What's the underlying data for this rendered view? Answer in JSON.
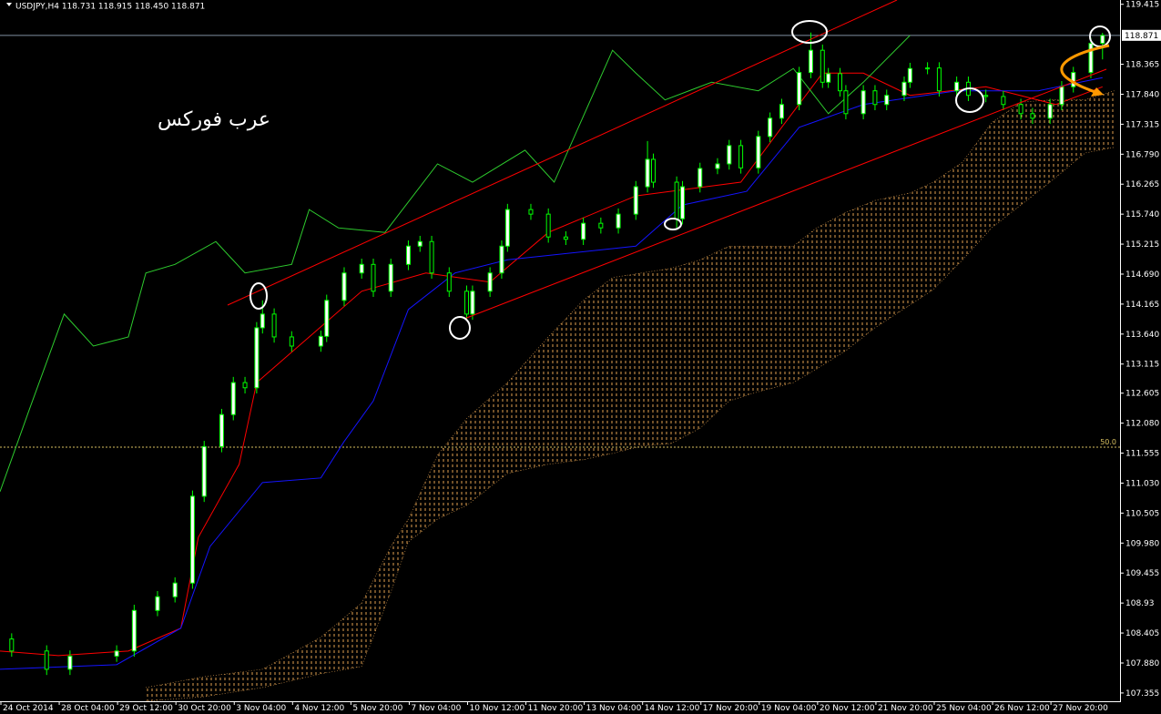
{
  "chart_data": {
    "type": "candlestick",
    "header": "USDJPY,H4  118.731 118.915 118.450 118.871",
    "watermark": "عرب فوركس",
    "xlim": [
      0,
      192
    ],
    "ylim": [
      107.21,
      119.49
    ],
    "yticks": [
      107.355,
      {
        "value": 107.88,
        "label": "107.880"
      },
      108.405,
      108.93,
      109.455,
      {
        "value": 109.98,
        "label": "109.980"
      },
      110.505,
      {
        "value": 111.03,
        "label": "111.030"
      },
      111.555,
      {
        "value": 112.08,
        "label": "112.080"
      },
      112.605,
      113.115,
      {
        "value": 113.64,
        "label": "113.640"
      },
      114.165,
      {
        "value": 114.69,
        "label": "114.690"
      },
      115.215,
      {
        "value": 115.74,
        "label": "115.740"
      },
      116.265,
      {
        "value": 116.79,
        "label": "116.790"
      },
      117.315,
      {
        "value": 117.84,
        "label": "117.840"
      },
      118.365,
      119.415
    ],
    "xticks": [
      {
        "value": 0,
        "label": "24 Oct 2014"
      },
      {
        "value": 10,
        "label": "28 Oct 04:00"
      },
      {
        "value": 20,
        "label": "29 Oct 12:00"
      },
      {
        "value": 30,
        "label": "30 Oct 20:00"
      },
      {
        "value": 40,
        "label": "3 Nov 04:00"
      },
      {
        "value": 50,
        "label": "4 Nov 12:00"
      },
      {
        "value": 60,
        "label": "5 Nov 20:00"
      },
      {
        "value": 70,
        "label": "7 Nov 04:00"
      },
      {
        "value": 80,
        "label": "10 Nov 12:00"
      },
      {
        "value": 90,
        "label": "11 Nov 20:00"
      },
      {
        "value": 100,
        "label": "13 Nov 04:00"
      },
      {
        "value": 110,
        "label": "14 Nov 12:00"
      },
      {
        "value": 120,
        "label": "17 Nov 20:00"
      },
      {
        "value": 130,
        "label": "19 Nov 04:00"
      },
      {
        "value": 140,
        "label": "20 Nov 12:00"
      },
      {
        "value": 150,
        "label": "21 Nov 20:00"
      },
      {
        "value": 160,
        "label": "25 Nov 04:00"
      },
      {
        "value": 170,
        "label": "26 Nov 12:00"
      },
      {
        "value": 180,
        "label": "27 Nov 20:00"
      }
    ],
    "current_price": 118.871,
    "level": {
      "value": 111.66,
      "label": "50.0"
    },
    "candle_color": "#00ff00",
    "x": [
      2,
      8,
      12,
      20,
      23,
      27,
      30,
      33,
      35,
      38,
      40,
      42,
      44,
      45,
      47,
      50,
      55,
      56,
      59,
      62,
      64,
      67,
      70,
      72,
      74,
      77,
      80,
      81,
      84,
      86,
      87,
      91,
      94,
      97,
      100,
      103,
      106,
      109,
      111,
      112,
      116,
      117,
      120,
      123,
      125,
      127,
      130,
      132,
      134,
      137,
      139,
      141,
      142,
      144,
      145,
      148,
      150,
      152,
      155,
      156,
      159,
      161,
      164,
      166,
      169,
      172,
      175,
      177,
      180,
      182,
      184,
      187,
      189
    ],
    "open": [
      108.3,
      108.09,
      107.77,
      108.0,
      108.09,
      108.8,
      109.04,
      109.28,
      110.8,
      111.67,
      112.23,
      112.79,
      112.7,
      113.75,
      113.99,
      113.59,
      113.43,
      113.6,
      114.23,
      114.71,
      114.86,
      114.39,
      114.86,
      115.18,
      115.26,
      114.71,
      114.39,
      113.99,
      114.39,
      114.71,
      115.18,
      115.82,
      115.74,
      115.34,
      115.3,
      115.58,
      115.5,
      115.74,
      116.22,
      116.7,
      116.3,
      115.66,
      116.22,
      116.54,
      116.62,
      116.94,
      116.55,
      117.1,
      117.42,
      117.66,
      118.22,
      118.61,
      118.05,
      118.2,
      117.9,
      117.5,
      117.9,
      117.66,
      117.82,
      118.05,
      118.29,
      118.3,
      117.9,
      118.05,
      117.82,
      117.8,
      117.66,
      117.5,
      117.42,
      117.66,
      117.97,
      118.22,
      118.731
    ],
    "high": [
      108.4,
      108.19,
      108.1,
      108.19,
      108.9,
      109.14,
      109.38,
      110.9,
      111.77,
      112.33,
      112.89,
      112.89,
      113.85,
      114.23,
      114.09,
      113.69,
      113.7,
      114.33,
      114.81,
      114.96,
      114.96,
      114.96,
      115.28,
      115.36,
      115.36,
      114.81,
      114.49,
      114.49,
      114.81,
      115.28,
      115.92,
      115.92,
      115.84,
      115.44,
      115.68,
      115.68,
      115.84,
      116.32,
      117.02,
      116.8,
      116.4,
      116.32,
      116.64,
      116.72,
      117.04,
      117.04,
      117.2,
      117.52,
      117.76,
      118.32,
      118.92,
      118.71,
      118.3,
      118.3,
      118.0,
      118.0,
      118.0,
      117.92,
      118.15,
      118.39,
      118.4,
      118.4,
      118.15,
      118.15,
      117.92,
      117.9,
      117.76,
      117.6,
      117.76,
      118.07,
      118.32,
      118.83,
      118.915
    ],
    "low": [
      107.99,
      107.67,
      107.67,
      107.9,
      107.99,
      108.7,
      108.94,
      109.18,
      110.7,
      111.57,
      112.13,
      112.6,
      112.6,
      113.65,
      113.49,
      113.33,
      113.33,
      113.5,
      114.13,
      114.61,
      114.29,
      114.29,
      114.76,
      115.08,
      114.61,
      114.29,
      113.89,
      113.89,
      114.29,
      114.61,
      115.08,
      115.64,
      115.24,
      115.2,
      115.2,
      115.4,
      115.4,
      115.64,
      116.12,
      116.2,
      115.5,
      115.56,
      116.12,
      116.44,
      116.52,
      116.45,
      116.45,
      117.0,
      117.32,
      117.56,
      118.12,
      117.95,
      117.95,
      117.8,
      117.4,
      117.4,
      117.56,
      117.56,
      117.72,
      117.95,
      118.19,
      117.8,
      117.8,
      117.72,
      117.7,
      117.56,
      117.4,
      117.32,
      117.32,
      117.56,
      117.87,
      118.12,
      118.45
    ],
    "close": [
      108.09,
      107.77,
      108.0,
      108.09,
      108.8,
      109.04,
      109.28,
      110.8,
      111.67,
      112.23,
      112.79,
      112.7,
      113.75,
      113.99,
      113.59,
      113.43,
      113.6,
      114.23,
      114.71,
      114.86,
      114.39,
      114.86,
      115.18,
      115.26,
      114.71,
      114.39,
      113.99,
      114.39,
      114.71,
      115.18,
      115.82,
      115.74,
      115.34,
      115.3,
      115.58,
      115.5,
      115.74,
      116.22,
      116.7,
      116.3,
      115.66,
      116.22,
      116.54,
      116.62,
      116.94,
      116.55,
      117.1,
      117.42,
      117.66,
      118.22,
      118.61,
      118.05,
      118.2,
      117.9,
      117.5,
      117.9,
      117.66,
      117.82,
      118.05,
      118.29,
      118.3,
      117.9,
      118.05,
      117.82,
      117.8,
      117.66,
      117.5,
      117.42,
      117.66,
      117.97,
      118.22,
      118.73,
      118.871
    ],
    "lines": [
      {
        "color": "#ff0000",
        "x": [
          0,
          10,
          22,
          31,
          34,
          41,
          44,
          53,
          62,
          73,
          84,
          94,
          109,
          127,
          134,
          141,
          148,
          156,
          169,
          181,
          189
        ],
        "values": [
          108.09,
          108.01,
          108.09,
          108.49,
          110.08,
          111.36,
          112.79,
          113.59,
          114.39,
          114.71,
          114.55,
          115.42,
          116.06,
          116.3,
          117.26,
          118.21,
          118.21,
          117.82,
          117.97,
          117.66,
          117.97
        ]
      },
      {
        "color": "#1414ff",
        "x": [
          0,
          20,
          31,
          36,
          45,
          55,
          59,
          64,
          70,
          78,
          87,
          109,
          117,
          128,
          137,
          148,
          164,
          178,
          189
        ],
        "values": [
          107.77,
          107.85,
          108.49,
          109.92,
          111.04,
          111.12,
          111.76,
          112.47,
          114.07,
          114.71,
          114.94,
          115.18,
          115.9,
          116.14,
          117.26,
          117.66,
          117.9,
          117.9,
          118.13
        ]
      },
      {
        "color": "#2ecc2e",
        "x": [
          0,
          5,
          11,
          16,
          22,
          25,
          30,
          37,
          42,
          50,
          53,
          58,
          66,
          75,
          81,
          90,
          95,
          105,
          109,
          114,
          122,
          130,
          136,
          142,
          148,
          156
        ],
        "values": [
          110.88,
          112.31,
          113.99,
          113.43,
          113.59,
          114.71,
          114.86,
          115.26,
          114.71,
          114.86,
          115.82,
          115.5,
          115.42,
          116.62,
          116.3,
          116.86,
          116.3,
          118.61,
          118.21,
          117.74,
          118.05,
          117.9,
          118.29,
          117.5,
          118.05,
          118.87
        ]
      }
    ],
    "cloud": {
      "color": "#e0a050",
      "x": [
        25,
        35,
        45,
        55,
        62,
        67,
        70,
        75,
        80,
        87,
        94,
        100,
        105,
        110,
        115,
        120,
        125,
        130,
        136,
        140,
        145,
        150,
        156,
        160,
        165,
        170,
        175,
        180,
        186,
        191
      ],
      "upper": [
        107.45,
        107.64,
        107.77,
        108.33,
        108.93,
        109.92,
        110.4,
        111.52,
        112.16,
        112.79,
        113.59,
        114.23,
        114.63,
        114.71,
        114.79,
        114.94,
        115.18,
        115.18,
        115.18,
        115.5,
        115.77,
        115.98,
        116.11,
        116.3,
        116.65,
        117.34,
        117.7,
        117.74,
        117.74,
        117.9
      ],
      "lower": [
        107.21,
        107.29,
        107.45,
        107.69,
        107.82,
        109.12,
        110.0,
        110.4,
        110.64,
        111.2,
        111.36,
        111.44,
        111.55,
        111.68,
        111.72,
        111.99,
        112.47,
        112.63,
        112.79,
        113.03,
        113.35,
        113.75,
        114.15,
        114.42,
        114.94,
        115.5,
        115.9,
        116.3,
        116.81,
        116.91
      ]
    }
  }
}
